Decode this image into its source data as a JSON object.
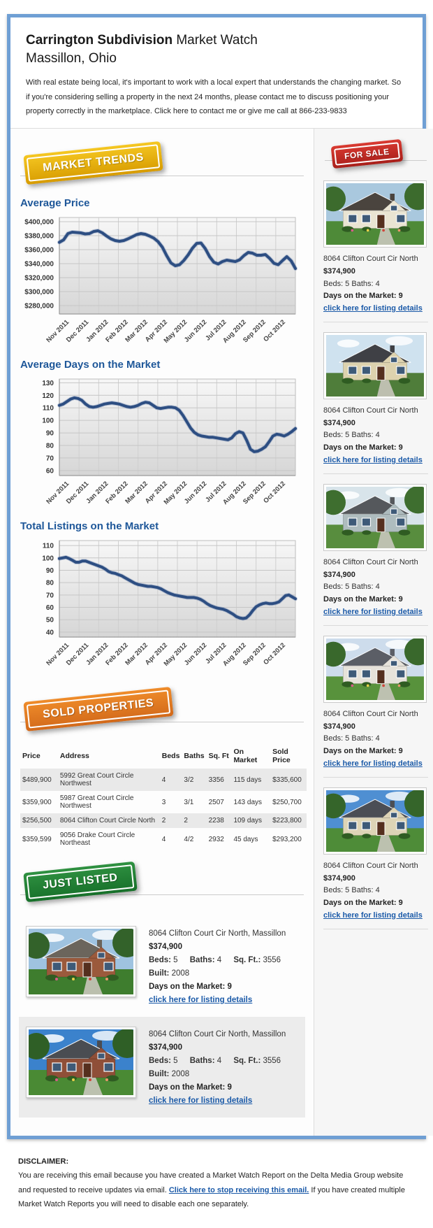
{
  "header": {
    "title_bold": "Carrington Subdivision",
    "title_rest": " Market Watch",
    "subtitle": "Massillon, Ohio",
    "intro": "With real estate being local, it's important to work with a local expert that understands the changing market. So if you're considering selling a property in the next 24 months, please contact me to discuss positioning your property correctly in the marketplace. Click here to contact me or give me call at 866-233-9833"
  },
  "badges": {
    "market_trends": "MARKET TRENDS",
    "for_sale": "FOR SALE",
    "sold_properties": "SOLD PROPERTIES",
    "just_listed": "JUST LISTED"
  },
  "colors": {
    "frame_blue": "#6f9fd4",
    "heading_blue": "#1e5799",
    "chart_line": "#2d4e82",
    "link_blue": "#1b5aa8",
    "badge_gold": "#e0ab00",
    "badge_red": "#c42b24",
    "badge_orange": "#e1761f",
    "badge_green": "#2c8a3e"
  },
  "chart_data": [
    {
      "type": "line",
      "title": "Average Price",
      "x_labels": [
        "Nov 2011",
        "Dec 2011",
        "Jan 2012",
        "Feb 2012",
        "Mar 2012",
        "Apr 2012",
        "May 2012",
        "Jun 2012",
        "Jul 2012",
        "Aug 2012",
        "Sep 2012",
        "Oct 2012"
      ],
      "ymin": 268000,
      "ymax": 406000,
      "yticks": [
        {
          "v": 400000,
          "label": "$400,000"
        },
        {
          "v": 380000,
          "label": "$380,000"
        },
        {
          "v": 360000,
          "label": "$360,000"
        },
        {
          "v": 340000,
          "label": "$340,000"
        },
        {
          "v": 320000,
          "label": "$320,000"
        },
        {
          "v": 300000,
          "label": "$300,000"
        },
        {
          "v": 280000,
          "label": "$280,000"
        }
      ],
      "values": [
        370500,
        374000,
        383000,
        385000,
        384500,
        384000,
        382500,
        383000,
        386000,
        387000,
        384000,
        379500,
        375500,
        373000,
        372000,
        373000,
        375500,
        378500,
        381500,
        383000,
        382000,
        379500,
        376500,
        371500,
        363500,
        351500,
        341000,
        337000,
        338500,
        344500,
        352500,
        362000,
        369000,
        369500,
        361500,
        350000,
        342000,
        339500,
        343000,
        345000,
        344000,
        343000,
        345500,
        351500,
        356000,
        355000,
        352000,
        352000,
        353000,
        347500,
        340500,
        338500,
        344500,
        350000,
        344000,
        333000
      ],
      "legend": "none",
      "grid": true
    },
    {
      "type": "line",
      "title": "Average Days on the Market",
      "x_labels": [
        "Nov 2011",
        "Dec 2011",
        "Jan 2012",
        "Feb 2012",
        "Mar 2012",
        "Apr 2012",
        "May 2012",
        "Jun 2012",
        "Jul 2012",
        "Aug 2012",
        "Sep 2012",
        "Oct 2012"
      ],
      "ymin": 56,
      "ymax": 133,
      "yticks": [
        {
          "v": 130,
          "label": "130"
        },
        {
          "v": 120,
          "label": "120"
        },
        {
          "v": 110,
          "label": "110"
        },
        {
          "v": 100,
          "label": "100"
        },
        {
          "v": 90,
          "label": "90"
        },
        {
          "v": 80,
          "label": "80"
        },
        {
          "v": 70,
          "label": "70"
        },
        {
          "v": 60,
          "label": "60"
        }
      ],
      "values": [
        112,
        113,
        115,
        117,
        118,
        117.5,
        116,
        113,
        111,
        110.5,
        111,
        112,
        113,
        113.5,
        114,
        113.5,
        113,
        112,
        111,
        110.5,
        111,
        112,
        113.5,
        114.5,
        114,
        112,
        110,
        109.5,
        110,
        110.5,
        110.5,
        110,
        108,
        104,
        99,
        94,
        90.5,
        88.5,
        87.5,
        87,
        86.5,
        86.5,
        86,
        85.5,
        85,
        84.5,
        86,
        89.5,
        91,
        90,
        84,
        77,
        75,
        75.5,
        77,
        79,
        83,
        87.5,
        89,
        88.5,
        87.5,
        89,
        91,
        93.5
      ],
      "legend": "none",
      "grid": true
    },
    {
      "type": "line",
      "title": "Total Listings on the Market",
      "x_labels": [
        "Nov 2011",
        "Dec 2011",
        "Jan 2012",
        "Feb 2012",
        "Mar 2012",
        "Apr 2012",
        "May 2012",
        "Jun 2012",
        "Jul 2012",
        "Aug 2012",
        "Sep 2012",
        "Oct 2012"
      ],
      "ymin": 36,
      "ymax": 114,
      "yticks": [
        {
          "v": 110,
          "label": "110"
        },
        {
          "v": 100,
          "label": "100"
        },
        {
          "v": 90,
          "label": "90"
        },
        {
          "v": 80,
          "label": "80"
        },
        {
          "v": 70,
          "label": "70"
        },
        {
          "v": 60,
          "label": "60"
        },
        {
          "v": 50,
          "label": "50"
        },
        {
          "v": 40,
          "label": "40"
        }
      ],
      "values": [
        99.5,
        100,
        100.5,
        99.5,
        98,
        96.5,
        96.5,
        97.5,
        97.5,
        96.5,
        95.5,
        94.5,
        93.5,
        92.5,
        91,
        89,
        88,
        87.5,
        86.5,
        85.5,
        84,
        82.5,
        81,
        79.5,
        78.5,
        78,
        77.5,
        77,
        77,
        76.5,
        76,
        75,
        73.5,
        72,
        71,
        70,
        69.5,
        69,
        68.5,
        68,
        68,
        68,
        67.5,
        66.5,
        65,
        63,
        61.5,
        60.5,
        59.5,
        59,
        58.5,
        57.5,
        56,
        54.5,
        52.5,
        51.5,
        51,
        51.5,
        54,
        57.5,
        60.5,
        62,
        63,
        63.5,
        63,
        63,
        63.5,
        64.5,
        67,
        69.5,
        70,
        68.5,
        67
      ],
      "legend": "none",
      "grid": true
    }
  ],
  "sold_table": {
    "headers": [
      "Price",
      "Address",
      "Beds",
      "Baths",
      "Sq. Ft",
      "On Market",
      "Sold Price"
    ],
    "rows": [
      {
        "price": "$489,900",
        "address": "5992 Great Court Circle Northwest",
        "beds": "4",
        "baths": "3/2",
        "sqft": "3356",
        "on_market": "115 days",
        "sold_price": "$335,600"
      },
      {
        "price": "$359,900",
        "address": "5987 Great Court Circle Northwest",
        "beds": "3",
        "baths": "3/1",
        "sqft": "2507",
        "on_market": "143 days",
        "sold_price": "$250,700"
      },
      {
        "price": "$256,500",
        "address": "8064 Clifton Court Circle North",
        "beds": "2",
        "baths": "2",
        "sqft": "2238",
        "on_market": "109 days",
        "sold_price": "$223,800"
      },
      {
        "price": "$359,599",
        "address": "9056 Drake Court Circle Northeast",
        "beds": "4",
        "baths": "4/2",
        "sqft": "2932",
        "on_market": "45 days",
        "sold_price": "$293,200"
      }
    ]
  },
  "sidebar": {
    "listings": [
      {
        "address": "8064 Clifton Court Cir North",
        "price": "$374,900",
        "beds_baths": "Beds: 5 Baths: 4",
        "dom": "Days on the Market: 9",
        "link": "click here for listing details",
        "photo": {
          "sky": "#a9c8de",
          "grass": "#4e8a38",
          "wall": "#e9e4d2",
          "roof": "#4a443e",
          "tree": "#3c6b2d",
          "trees": 1,
          "clouds": 0,
          "flowers": 1
        }
      },
      {
        "address": "8064 Clifton Court Cir North",
        "price": "$374,900",
        "beds_baths": "Beds: 5 Baths: 4",
        "dom": "Days on the Market: 9",
        "link": "click here for listing details",
        "photo": {
          "sky": "#cfe2ef",
          "grass": "#4f7d3a",
          "wall": "#ddd2ae",
          "roof": "#3f4045",
          "tree": "#4c7a36",
          "trees": 0,
          "clouds": 1,
          "flowers": 0
        }
      },
      {
        "address": "8064 Clifton Court Cir North",
        "price": "$374,900",
        "beds_baths": "Beds: 5 Baths: 4",
        "dom": "Days on the Market: 9",
        "link": "click here for listing details",
        "photo": {
          "sky": "#d8e4ea",
          "grass": "#588d3e",
          "wall": "#aebcbe",
          "roof": "#55585c",
          "tree": "#3e6e2f",
          "trees": 1,
          "clouds": 1,
          "flowers": 0
        }
      },
      {
        "address": "8064 Clifton Court Cir North",
        "price": "$374,900",
        "beds_baths": "Beds: 5 Baths: 4",
        "dom": "Days on the Market: 9",
        "link": "click here for listing details",
        "photo": {
          "sky": "#cddcec",
          "grass": "#58923c",
          "wall": "#e6e2da",
          "roof": "#5b5e66",
          "tree": "#39682c",
          "trees": 1,
          "clouds": 1,
          "flowers": 1
        }
      },
      {
        "address": "8064 Clifton Court Cir North",
        "price": "$374,900",
        "beds_baths": "Beds: 5 Baths: 4",
        "dom": "Days on the Market: 9",
        "link": "click here for listing details",
        "photo": {
          "sky": "#4f8fd2",
          "grass": "#4e8c38",
          "wall": "#ddd4b6",
          "roof": "#4b4e55",
          "tree": "#35652a",
          "trees": 1,
          "clouds": 1,
          "flowers": 0
        }
      }
    ]
  },
  "just_listed": {
    "items": [
      {
        "address": "8064 Clifton Court Cir North, Massillon",
        "price": "$374,900",
        "beds_label": "Beds:",
        "beds": " 5",
        "baths_label": "Baths:",
        "baths": " 4",
        "sqft_label": "Sq. Ft.:",
        "sqft": " 3556",
        "built_label": "Built:",
        "built": " 2008",
        "dom": "Days on the Market: 9",
        "link": "click here for listing details",
        "photo": {
          "sky": "#9fc3e0",
          "grass": "#3e7d2e",
          "wall": "#9b5a3c",
          "roof": "#6b655c",
          "tree": "#33622a",
          "trees": 1,
          "clouds": 1,
          "flowers": 1
        }
      },
      {
        "address": "8064 Clifton Court Cir North, Massillon",
        "price": "$374,900",
        "beds_label": "Beds:",
        "beds": " 5",
        "baths_label": "Baths:",
        "baths": " 4",
        "sqft_label": "Sq. Ft.:",
        "sqft": " 3556",
        "built_label": "Built:",
        "built": " 2008",
        "dom": "Days on the Market: 9",
        "link": "click here for listing details",
        "photo": {
          "sky": "#3b82cc",
          "grass": "#4a8a34",
          "wall": "#8f4f38",
          "roof": "#4a4d52",
          "tree": "#2f5f26",
          "trees": 1,
          "clouds": 1,
          "flowers": 1
        }
      }
    ]
  },
  "disclaimer": {
    "heading": "DISCLAIMER:",
    "before_link": "You are receiving this email because you have created a Market Watch Report on the Delta Media Group website and requested to receive updates via email. ",
    "link": "Click here to stop receiving this email.",
    "after_link": " If you have created multiple Market Watch Reports you will need to disable each one separately."
  }
}
